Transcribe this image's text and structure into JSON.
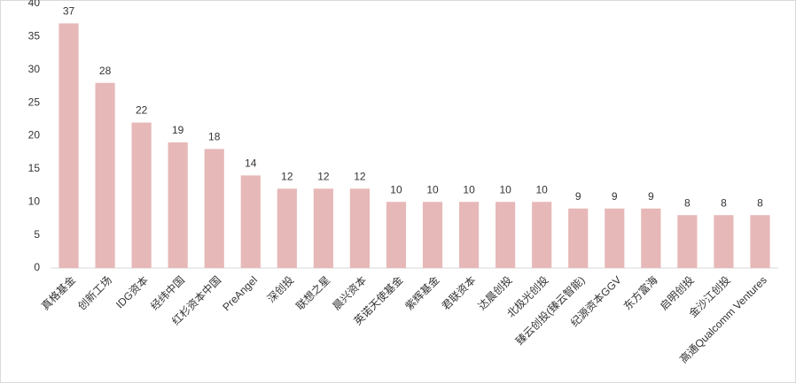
{
  "chart_data": {
    "type": "bar",
    "categories": [
      "真格基金",
      "创新工场",
      "IDG资本",
      "经纬中国",
      "红杉资本中国",
      "PreAngel",
      "深创投",
      "联想之星",
      "晨兴资本",
      "英诺天使基金",
      "紫辉基金",
      "君联资本",
      "达晨创投",
      "北极光创投",
      "臻云创投(臻云智能)",
      "纪源资本GGV",
      "东方富海",
      "启明创投",
      "金沙江创投",
      "高通Qualcomm Ventures"
    ],
    "values": [
      37,
      28,
      22,
      19,
      18,
      14,
      12,
      12,
      12,
      10,
      10,
      10,
      10,
      10,
      9,
      9,
      9,
      8,
      8,
      8
    ],
    "color": "#e6b8b7",
    "ylim": [
      0,
      40
    ],
    "yticks": [
      0,
      5,
      10,
      15,
      20,
      25,
      30,
      35,
      40
    ],
    "grid": false
  }
}
